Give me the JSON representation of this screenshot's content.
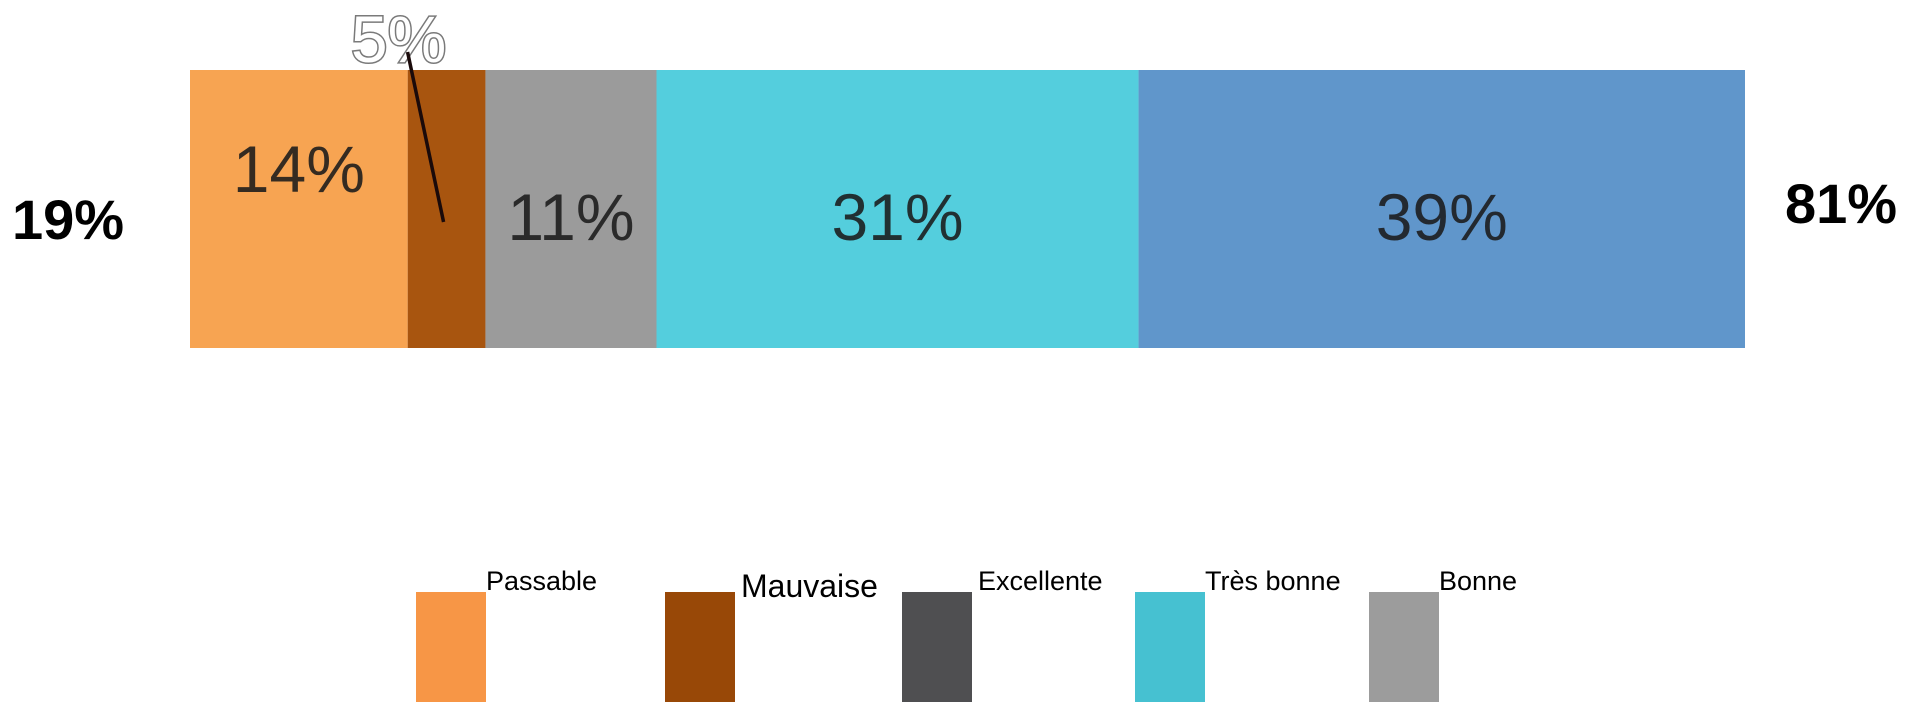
{
  "chart_data": {
    "type": "bar",
    "orientation": "horizontal-stacked",
    "categories": [
      ""
    ],
    "series": [
      {
        "name": "Passable",
        "values": [
          14
        ],
        "label": "14%"
      },
      {
        "name": "Mauvaise",
        "values": [
          5
        ],
        "label": "5%"
      },
      {
        "name": "Bonne",
        "values": [
          11
        ],
        "label": "11%"
      },
      {
        "name": "Très bonne",
        "values": [
          31
        ],
        "label": "31%"
      },
      {
        "name": "Excellente",
        "values": [
          39
        ],
        "label": "39%"
      }
    ],
    "xlim": [
      0,
      100
    ],
    "grid": false,
    "legend_position": "bottom",
    "left_total": "19%",
    "right_total": "81%",
    "segment_colors": [
      "#f7a452",
      "#a8550f",
      "#9b9b9b",
      "#54cedd",
      "#6096cb"
    ]
  },
  "legend": {
    "items": [
      {
        "label": "Passable",
        "color": "#f79646"
      },
      {
        "label": "Mauvaise",
        "color": "#984807"
      },
      {
        "label": "Excellente",
        "color": "#4f4f51"
      },
      {
        "label": "Très bonne",
        "color": "#46c1d1"
      },
      {
        "label": "Bonne",
        "color": "#9c9c9c"
      }
    ]
  }
}
